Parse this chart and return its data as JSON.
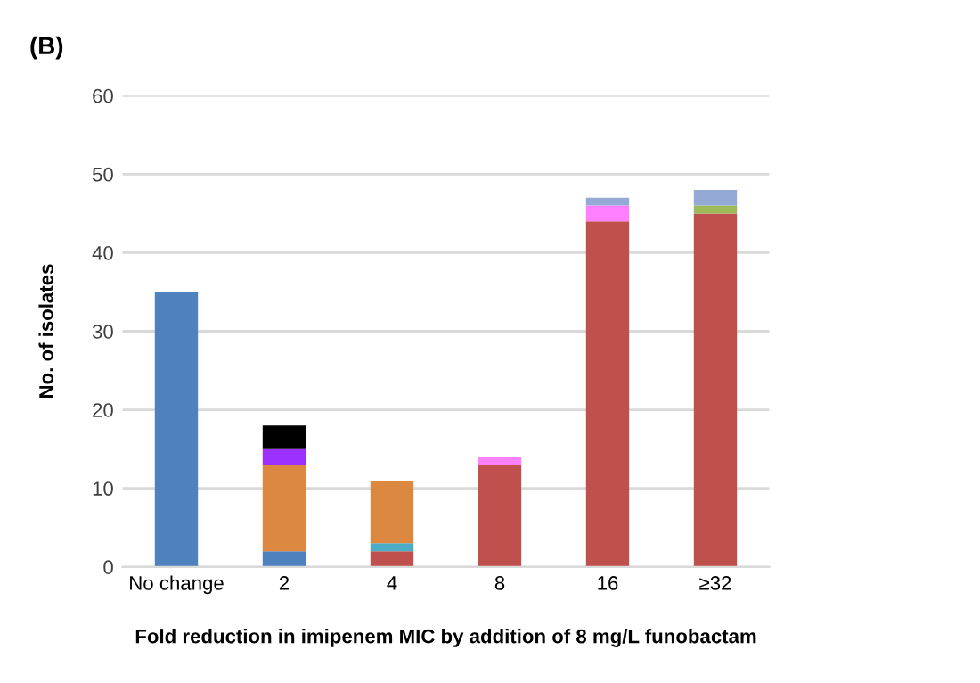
{
  "chart_data": {
    "type": "bar",
    "title": "(B)",
    "xlabel": "Fold reduction in imipenem MIC by addition of 8 mg/L funobactam",
    "ylabel": "No. of isolates",
    "categories": [
      "No change",
      "2",
      "4",
      "8",
      "16",
      "≥32"
    ],
    "stacked": true,
    "series": [
      {
        "color": "#4f81bd",
        "values": [
          35,
          2,
          0,
          0,
          0,
          0
        ]
      },
      {
        "color": "#c0504d",
        "values": [
          0,
          0,
          2,
          13,
          44,
          45
        ]
      },
      {
        "color": "#4bacc6",
        "values": [
          0,
          0,
          1,
          0,
          0,
          0
        ]
      },
      {
        "color": "#dd8840",
        "values": [
          0,
          11,
          8,
          0,
          0,
          0
        ]
      },
      {
        "color": "#9b30ff",
        "values": [
          0,
          2,
          0,
          0,
          0,
          0
        ]
      },
      {
        "color": "#000000",
        "values": [
          0,
          3,
          0,
          0,
          0,
          0
        ]
      },
      {
        "color": "#ff80ff",
        "values": [
          0,
          0,
          0,
          1,
          2,
          0
        ]
      },
      {
        "color": "#9bbb59",
        "values": [
          0,
          0,
          0,
          0,
          0,
          1
        ]
      },
      {
        "color": "#95a9d6",
        "values": [
          0,
          0,
          0,
          0,
          1,
          2
        ]
      }
    ],
    "ylim": [
      0,
      60
    ],
    "yticks": [
      0,
      10,
      20,
      30,
      40,
      50,
      60
    ],
    "grid": "y",
    "legend": false
  }
}
